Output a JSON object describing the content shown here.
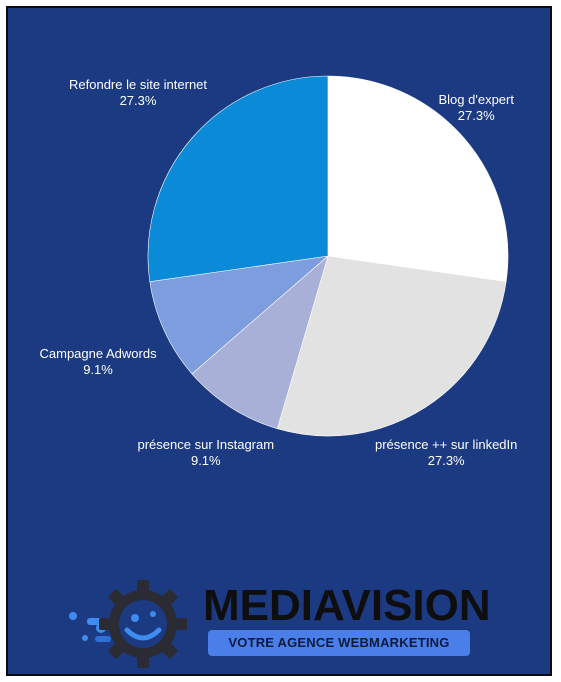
{
  "chart_data": {
    "type": "pie",
    "slices": [
      {
        "label": "Blog d'expert",
        "value": 27.3,
        "display": "27.3%",
        "color": "#ffffff"
      },
      {
        "label": "présence ++ sur linkedIn",
        "value": 27.3,
        "display": "27.3%",
        "color": "#e2e2e2"
      },
      {
        "label": "présence sur Instagram",
        "value": 9.1,
        "display": "9.1%",
        "color": "#a9b0d8"
      },
      {
        "label": "Campagne Adwords",
        "value": 9.1,
        "display": "9.1%",
        "color": "#7e9ddf"
      },
      {
        "label": "Refondre le site internet",
        "value": 27.3,
        "display": "27.3%",
        "color": "#0b8ad8"
      }
    ],
    "start_angle_deg": 0,
    "direction": "clockwise"
  },
  "brand": {
    "name": "MEDIAVISION",
    "tagline": "VOTRE AGENCE WEBMARKETING",
    "logo_icon": "gear-eye-icon"
  },
  "colors": {
    "background": "#1b3a82",
    "accent": "#4a7ee8"
  }
}
